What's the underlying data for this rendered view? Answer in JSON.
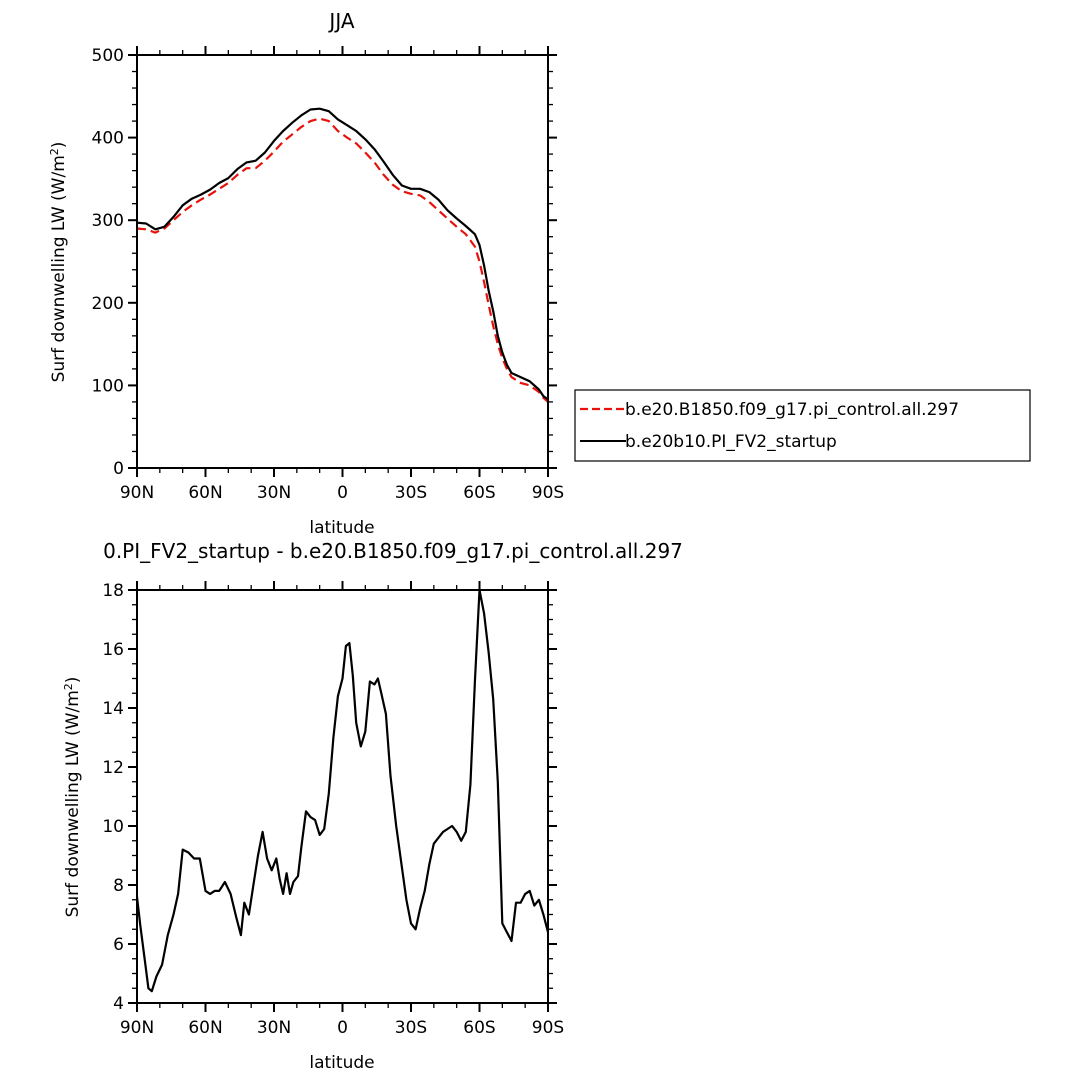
{
  "chart_data": [
    {
      "type": "line",
      "title": "JJA",
      "xlabel": "latitude",
      "ylabel": "Surf downwelling LW (W/m²)",
      "ylabel_base": "Surf downwelling LW (W/m",
      "ylabel_sup": "2",
      "ylabel_end": ")",
      "xlim": [
        90,
        -90
      ],
      "ylim": [
        0,
        500
      ],
      "x_tick_values": [
        90,
        60,
        30,
        0,
        -30,
        -60,
        -90
      ],
      "x_tick_labels": [
        "90N",
        "60N",
        "30N",
        "0",
        "30S",
        "60S",
        "90S"
      ],
      "y_tick_values": [
        0,
        100,
        200,
        300,
        400,
        500
      ],
      "y_tick_labels": [
        "0",
        "100",
        "200",
        "300",
        "400",
        "500"
      ],
      "grid": false,
      "legend_position": "right",
      "series": [
        {
          "name": "b.e20.B1850.f09_g17.pi_control.all.297",
          "color": "#e8120c",
          "dash": "dashed",
          "x": [
            90,
            86,
            82,
            78,
            74,
            70,
            66,
            62,
            58,
            54,
            50,
            46,
            42,
            38,
            34,
            30,
            26,
            22,
            18,
            14,
            10,
            6,
            2,
            -2,
            -6,
            -10,
            -14,
            -18,
            -22,
            -26,
            -30,
            -34,
            -38,
            -42,
            -46,
            -50,
            -54,
            -58,
            -60,
            -62,
            -64,
            -66,
            -68,
            -70,
            -72,
            -74,
            -78,
            -82,
            -86,
            -88,
            -90
          ],
          "y": [
            290,
            289,
            285,
            290,
            300,
            310,
            318,
            325,
            331,
            338,
            345,
            355,
            363,
            363,
            372,
            383,
            395,
            404,
            413,
            420,
            423,
            420,
            408,
            400,
            393,
            382,
            370,
            355,
            343,
            335,
            332,
            330,
            322,
            312,
            302,
            292,
            283,
            268,
            250,
            225,
            198,
            172,
            150,
            133,
            120,
            110,
            103,
            100,
            92,
            85,
            80
          ]
        },
        {
          "name": "b.e20b10.PI_FV2_startup",
          "color": "#000000",
          "dash": "solid",
          "x": [
            90,
            86,
            82,
            78,
            74,
            70,
            66,
            62,
            58,
            54,
            50,
            46,
            42,
            38,
            34,
            30,
            26,
            22,
            18,
            14,
            10,
            6,
            2,
            -2,
            -6,
            -10,
            -14,
            -18,
            -22,
            -26,
            -30,
            -34,
            -38,
            -42,
            -46,
            -50,
            -54,
            -58,
            -60,
            -62,
            -64,
            -66,
            -68,
            -70,
            -72,
            -74,
            -78,
            -82,
            -86,
            -88,
            -90
          ],
          "y": [
            297,
            296,
            289,
            292,
            304,
            318,
            326,
            331,
            337,
            345,
            351,
            362,
            370,
            372,
            382,
            396,
            408,
            418,
            427,
            434,
            435,
            432,
            422,
            415,
            408,
            398,
            386,
            371,
            355,
            342,
            338,
            338,
            334,
            325,
            312,
            302,
            293,
            283,
            270,
            245,
            215,
            190,
            160,
            140,
            125,
            115,
            110,
            105,
            95,
            87,
            83
          ]
        }
      ]
    },
    {
      "type": "line",
      "title": "0.PI_FV2_startup - b.e20.B1850.f09_g17.pi_control.all.297",
      "xlabel": "latitude",
      "ylabel": "Surf downwelling LW (W/m²)",
      "ylabel_base": "Surf downwelling LW (W/m",
      "ylabel_sup": "2",
      "ylabel_end": ")",
      "xlim": [
        90,
        -90
      ],
      "ylim": [
        4,
        18
      ],
      "x_tick_values": [
        90,
        60,
        30,
        0,
        -30,
        -60,
        -90
      ],
      "x_tick_labels": [
        "90N",
        "60N",
        "30N",
        "0",
        "30S",
        "60S",
        "90S"
      ],
      "y_tick_values": [
        4,
        6,
        8,
        10,
        12,
        14,
        16,
        18
      ],
      "y_tick_labels": [
        "4",
        "6",
        "8",
        "10",
        "12",
        "14",
        "16",
        "18"
      ],
      "grid": false,
      "series": [
        {
          "color": "#000000",
          "dash": "solid",
          "x": [
            90,
            88.5,
            86.5,
            85,
            83.5,
            81.5,
            79,
            76.5,
            74,
            72,
            70,
            67.5,
            65,
            62.5,
            60,
            58,
            56,
            54,
            51.5,
            49,
            46.5,
            44.5,
            43,
            41,
            39,
            37,
            35,
            33,
            31,
            29,
            27.5,
            26,
            24.5,
            23,
            21.5,
            19.5,
            18,
            16,
            14,
            12,
            10,
            8,
            6,
            4,
            2,
            0,
            -1.5,
            -3,
            -4.5,
            -6,
            -8,
            -10,
            -12,
            -14,
            -15.5,
            -17,
            -19,
            -21,
            -23.5,
            -26,
            -28,
            -30,
            -32,
            -34,
            -36,
            -38,
            -40,
            -42,
            -44,
            -46,
            -48,
            -50,
            -52,
            -54,
            -56,
            -58,
            -60,
            -62,
            -64,
            -66,
            -68,
            -70,
            -72,
            -74,
            -76,
            -78,
            -80,
            -82,
            -84,
            -86,
            -88,
            -90
          ],
          "y": [
            7.6,
            6.6,
            5.4,
            4.5,
            4.4,
            4.9,
            5.3,
            6.3,
            7.0,
            7.7,
            9.2,
            9.1,
            8.9,
            8.9,
            7.8,
            7.7,
            7.8,
            7.8,
            8.1,
            7.7,
            6.9,
            6.3,
            7.4,
            7.0,
            8.0,
            9.0,
            9.8,
            8.9,
            8.5,
            8.9,
            8.2,
            7.7,
            8.4,
            7.7,
            8.1,
            8.3,
            9.3,
            10.5,
            10.3,
            10.2,
            9.7,
            9.9,
            11.1,
            13.0,
            14.4,
            15.0,
            16.1,
            16.2,
            15.1,
            13.5,
            12.7,
            13.2,
            14.9,
            14.8,
            15.0,
            14.5,
            13.8,
            11.7,
            10.0,
            8.6,
            7.5,
            6.7,
            6.5,
            7.2,
            7.8,
            8.7,
            9.4,
            9.6,
            9.8,
            9.9,
            10.0,
            9.8,
            9.5,
            9.8,
            11.4,
            14.9,
            18.0,
            17.2,
            15.9,
            14.3,
            11.5,
            6.7,
            6.4,
            6.1,
            7.4,
            7.4,
            7.7,
            7.8,
            7.3,
            7.5,
            7.0,
            6.4
          ]
        }
      ]
    }
  ]
}
